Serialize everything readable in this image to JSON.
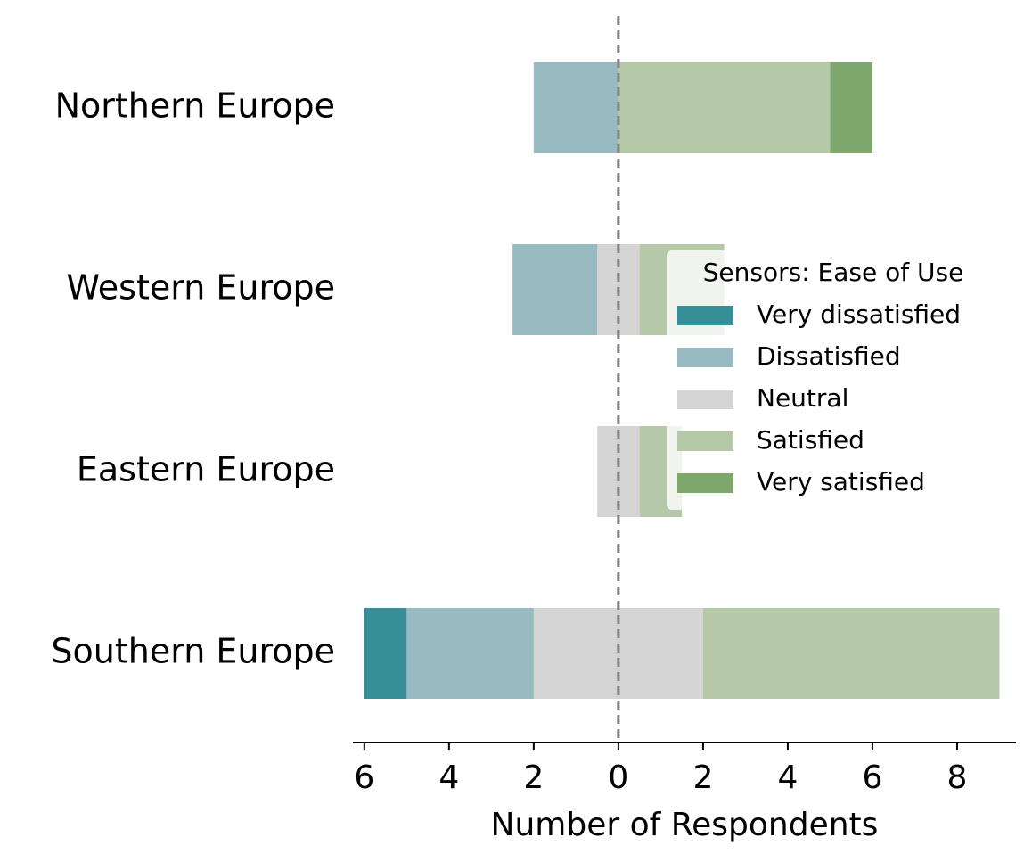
{
  "chart_data": {
    "type": "diverging-bar",
    "categories": [
      "Northern Europe",
      "Western Europe",
      "Eastern Europe",
      "Southern Europe"
    ],
    "series": [
      {
        "name": "Very dissatisfied",
        "color": "#368f97",
        "values": [
          0,
          0,
          0,
          1
        ]
      },
      {
        "name": "Dissatisfied",
        "color": "#97bac1",
        "values": [
          2,
          2,
          0,
          3
        ]
      },
      {
        "name": "Neutral",
        "color": "#d4d4d4",
        "values": [
          0,
          1,
          1,
          4
        ]
      },
      {
        "name": "Satisfied",
        "color": "#b5c8a8",
        "values": [
          5,
          2,
          1,
          7
        ]
      },
      {
        "name": "Very satisfied",
        "color": "#7ea76b",
        "values": [
          1,
          0,
          0,
          0
        ]
      }
    ],
    "xlabel": "Number of Respondents",
    "legend_title": "Sensors: Ease of Use",
    "xlim": [
      -6.27,
      9.39
    ],
    "xticks": [
      {
        "value": -6,
        "label": "6"
      },
      {
        "value": -4,
        "label": "4"
      },
      {
        "value": -2,
        "label": "2"
      },
      0,
      2,
      4,
      6,
      8
    ],
    "legend_position": "right"
  }
}
